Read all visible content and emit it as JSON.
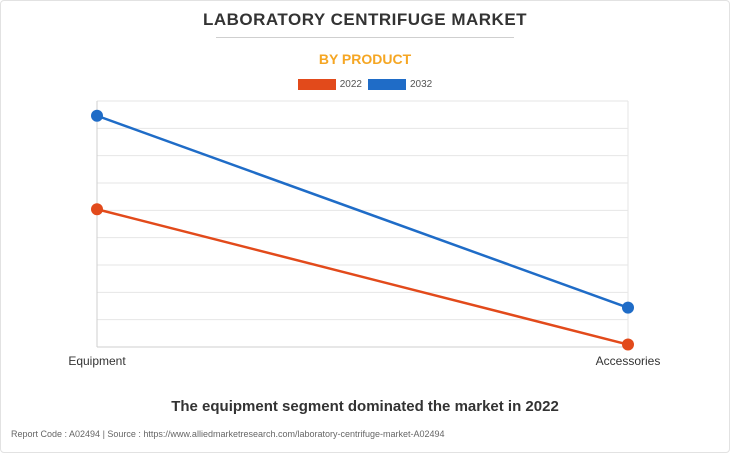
{
  "header": {
    "title": "LABORATORY CENTRIFUGE MARKET",
    "subtitle": "BY PRODUCT"
  },
  "legend": [
    {
      "label": "2022",
      "color": "#e24a1b"
    },
    {
      "label": "2032",
      "color": "#1f6cc7"
    }
  ],
  "chart_data": {
    "type": "line",
    "title": "LABORATORY CENTRIFUGE MARKET",
    "subtitle": "BY PRODUCT",
    "categories": [
      "Equipment",
      "Accessories"
    ],
    "series": [
      {
        "name": "2022",
        "color": "#e24a1b",
        "values": [
          0.56,
          0.01
        ]
      },
      {
        "name": "2032",
        "color": "#1f6cc7",
        "values": [
          0.94,
          0.16
        ]
      }
    ],
    "ylim": [
      0,
      1
    ],
    "grid": true,
    "legend_position": "top-center"
  },
  "caption": "The equipment segment dominated the market in 2022",
  "footer": "Report Code : A02494  |  Source : https://www.alliedmarketresearch.com/laboratory-centrifuge-market-A02494",
  "colors": {
    "accent": "#f5a623",
    "text": "#333333",
    "grid": "#e6e6e6"
  }
}
